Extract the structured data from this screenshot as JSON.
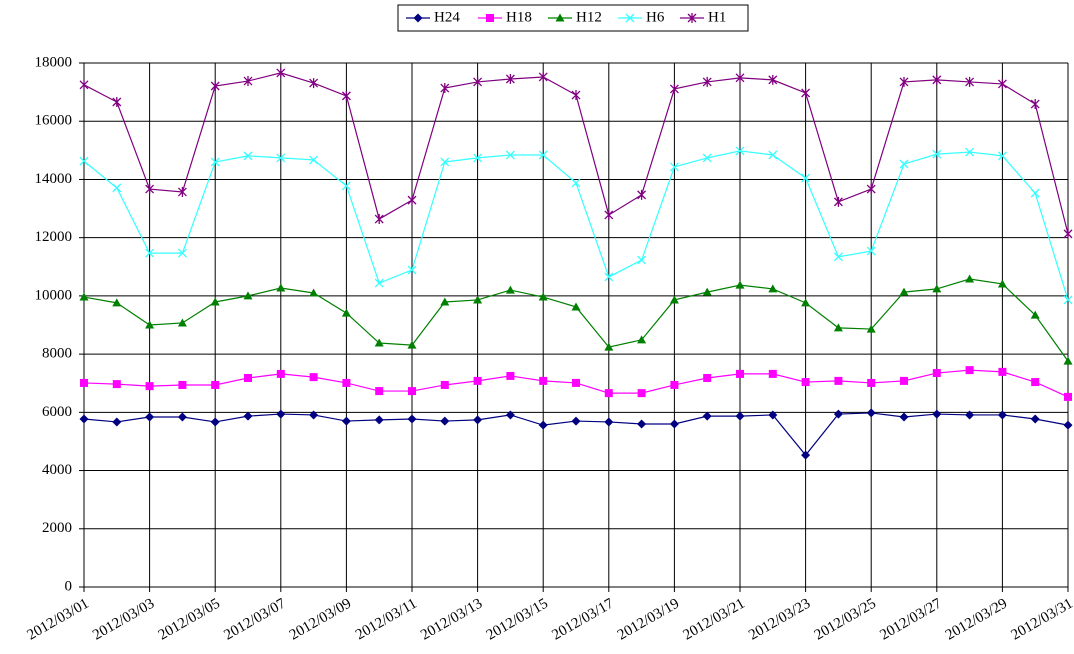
{
  "chart_data": {
    "type": "line",
    "categories": [
      "2012/03/01",
      null,
      "2012/03/03",
      null,
      "2012/03/05",
      null,
      "2012/03/07",
      null,
      "2012/03/09",
      null,
      "2012/03/11",
      null,
      "2012/03/13",
      null,
      "2012/03/15",
      null,
      "2012/03/17",
      null,
      "2012/03/19",
      null,
      "2012/03/21",
      null,
      "2012/03/23",
      null,
      "2012/03/25",
      null,
      "2012/03/27",
      null,
      "2012/03/29",
      null,
      "2012/03/31"
    ],
    "series": [
      {
        "name": "H24",
        "color": "#000080",
        "marker": "diamond",
        "values": [
          5770,
          5670,
          5840,
          5840,
          5670,
          5870,
          5940,
          5910,
          5700,
          5740,
          5770,
          5700,
          5740,
          5910,
          5560,
          5700,
          5670,
          5600,
          5600,
          5870,
          5870,
          5910,
          4530,
          5940,
          5980,
          5840,
          5940,
          5910,
          5910,
          5770,
          5560
        ]
      },
      {
        "name": "H18",
        "color": "#ff00ff",
        "marker": "square",
        "values": [
          7010,
          6970,
          6900,
          6940,
          6940,
          7180,
          7320,
          7210,
          7010,
          6730,
          6730,
          6940,
          7080,
          7250,
          7080,
          7010,
          6660,
          6660,
          6940,
          7180,
          7320,
          7320,
          7040,
          7080,
          7010,
          7080,
          7350,
          7450,
          7390,
          7040,
          6530
        ]
      },
      {
        "name": "H12",
        "color": "#008000",
        "marker": "triangle",
        "values": [
          9960,
          9760,
          9000,
          9070,
          9790,
          10000,
          10270,
          10100,
          9410,
          8380,
          8310,
          9790,
          9860,
          10200,
          9960,
          9620,
          8240,
          8490,
          9860,
          10130,
          10370,
          10240,
          9760,
          8900,
          8860,
          10130,
          10240,
          10580,
          10410,
          9340,
          7760
        ]
      },
      {
        "name": "H6",
        "color": "#33ffff",
        "marker": "x",
        "values": [
          14630,
          13710,
          11470,
          11470,
          14600,
          14810,
          14740,
          14670,
          13780,
          10440,
          10890,
          14600,
          14740,
          14840,
          14840,
          13880,
          10650,
          11230,
          14430,
          14740,
          14980,
          14840,
          14050,
          11340,
          11540,
          14530,
          14870,
          14940,
          14810,
          13530,
          9860
        ]
      },
      {
        "name": "H1",
        "color": "#800080",
        "marker": "star",
        "values": [
          17250,
          16660,
          13670,
          13570,
          17210,
          17380,
          17660,
          17310,
          16870,
          12640,
          13290,
          17140,
          17350,
          17450,
          17520,
          16900,
          12780,
          13470,
          17110,
          17350,
          17490,
          17420,
          16970,
          13230,
          13670,
          17350,
          17420,
          17350,
          17280,
          16590,
          12130
        ]
      }
    ],
    "ylim": [
      0,
      18000
    ],
    "yticks": [
      0,
      2000,
      4000,
      6000,
      8000,
      10000,
      12000,
      14000,
      16000,
      18000
    ],
    "grid": true,
    "legend": "top"
  }
}
